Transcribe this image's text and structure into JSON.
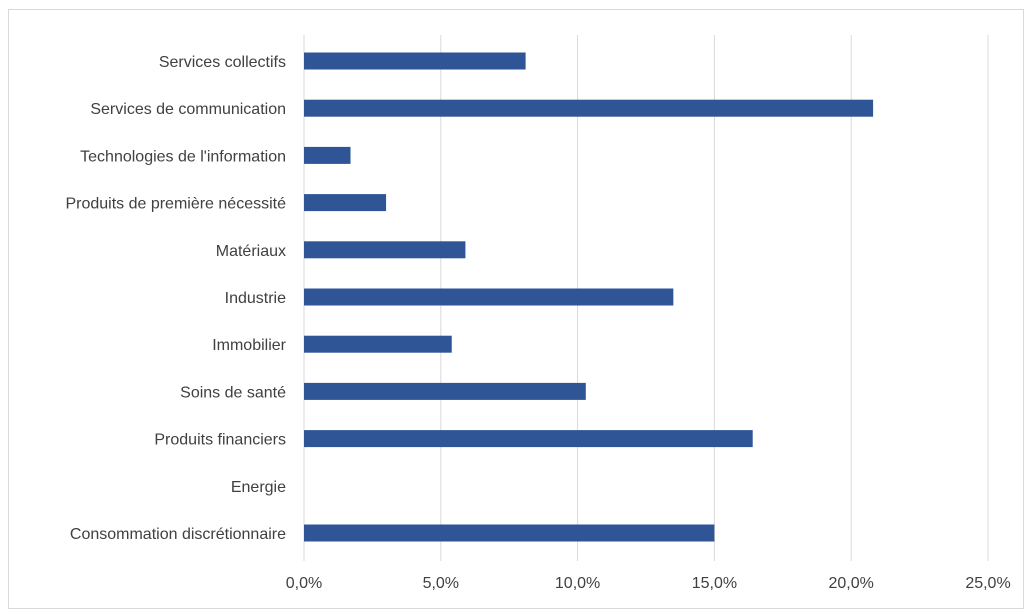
{
  "chart_data": {
    "type": "bar",
    "orientation": "horizontal",
    "title": "",
    "xlabel": "",
    "ylabel": "",
    "categories": [
      "Services collectifs",
      "Services de communication",
      "Technologies de l'information",
      "Produits de première nécessité",
      "Matériaux",
      "Industrie",
      "Immobilier",
      "Soins de santé",
      "Produits financiers",
      "Energie",
      "Consommation discrétionnaire"
    ],
    "values": [
      8.1,
      20.8,
      1.7,
      3.0,
      5.9,
      13.5,
      5.4,
      10.3,
      16.4,
      0.0,
      15.0
    ],
    "xlim": [
      0,
      25
    ],
    "xticks": [
      0,
      5,
      10,
      15,
      20,
      25
    ],
    "xtick_labels": [
      "0,0%",
      "5,0%",
      "10,0%",
      "15,0%",
      "20,0%",
      "25,0%"
    ],
    "grid": "vertical",
    "legend": "none",
    "colors": {
      "bar": "#2F5597",
      "grid": "#D9D9D9",
      "text": "#404040"
    }
  }
}
